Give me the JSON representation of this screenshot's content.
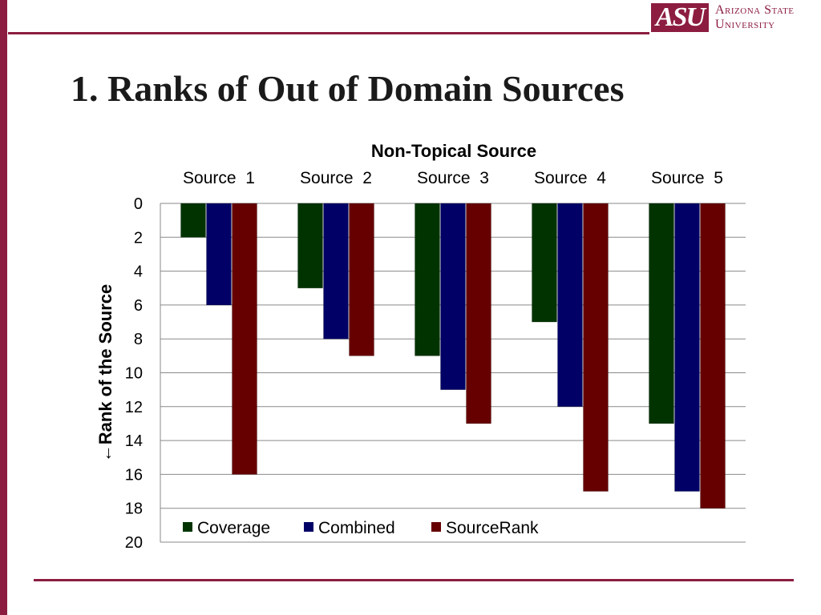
{
  "slide": {
    "title": "1. Ranks of Out of Domain Sources",
    "logo_mark": "ASU",
    "logo_line1": "Arizona State",
    "logo_line2": "University"
  },
  "colors": {
    "brand": "#8c1d40",
    "Coverage": "#003300",
    "Combined": "#000066",
    "SourceRank": "#660000"
  },
  "chart_data": {
    "type": "bar",
    "title": "Non-Topical Source",
    "ylabel": "←Rank of the Source",
    "xlabel": "",
    "categories": [
      "Source  1",
      "Source  2",
      "Source  3",
      "Source  4",
      "Source  5"
    ],
    "series": [
      {
        "name": "Coverage",
        "values": [
          2,
          5,
          9,
          7,
          13
        ]
      },
      {
        "name": "Combined",
        "values": [
          6,
          8,
          11,
          12,
          17
        ]
      },
      {
        "name": "SourceRank",
        "values": [
          16,
          9,
          13,
          17,
          18
        ]
      }
    ],
    "yticks": [
      "0",
      "2",
      "4",
      "6",
      "8",
      "10",
      "12",
      "14",
      "16",
      "18",
      "20"
    ],
    "ylim": [
      0,
      20
    ],
    "y_axis_inverted": true,
    "category_axis_position": "top",
    "grid": true,
    "legend_position": "bottom-inside"
  }
}
